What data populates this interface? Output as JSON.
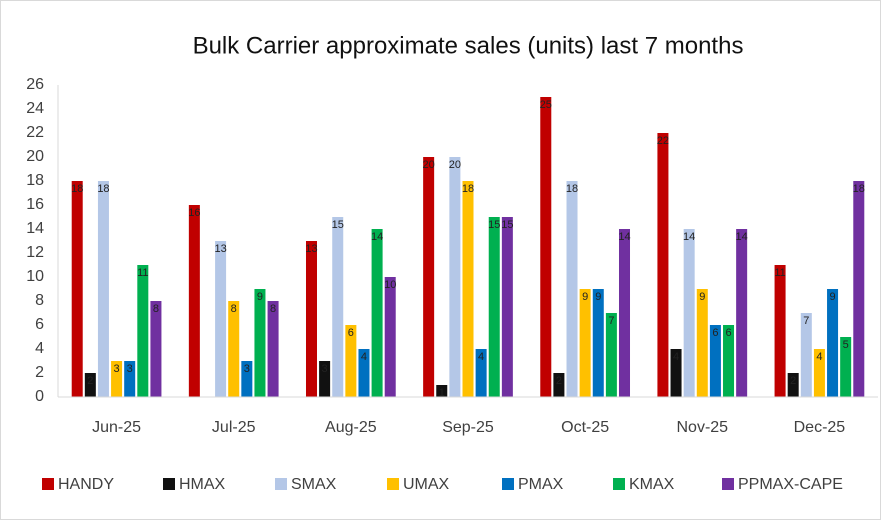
{
  "chart_data": {
    "type": "bar",
    "title": "Bulk Carrier approximate sales (units) last 7 months",
    "categories": [
      "Jun-25",
      "Jul-25",
      "Aug-25",
      "Sep-25",
      "Oct-25",
      "Nov-25",
      "Dec-25"
    ],
    "series": [
      {
        "name": "HANDY",
        "color": "#c00000",
        "values": [
          18,
          16,
          13,
          20,
          25,
          22,
          11
        ]
      },
      {
        "name": "HMAX",
        "color": "#111111",
        "values": [
          2,
          null,
          3,
          1,
          2,
          4,
          2
        ]
      },
      {
        "name": "SMAX",
        "color": "#b4c7e7",
        "values": [
          18,
          13,
          15,
          20,
          18,
          14,
          7
        ]
      },
      {
        "name": "UMAX",
        "color": "#ffc000",
        "values": [
          3,
          8,
          6,
          18,
          9,
          9,
          4
        ]
      },
      {
        "name": "PMAX",
        "color": "#0070c0",
        "values": [
          3,
          3,
          4,
          4,
          9,
          6,
          9
        ]
      },
      {
        "name": "KMAX",
        "color": "#00b050",
        "values": [
          11,
          9,
          14,
          15,
          7,
          6,
          5
        ]
      },
      {
        "name": "PPMAX-CAPE",
        "color": "#7030a0",
        "values": [
          8,
          8,
          10,
          15,
          14,
          14,
          18
        ]
      }
    ],
    "ylim": [
      0,
      26
    ],
    "yticks": [
      0,
      2,
      4,
      6,
      8,
      10,
      12,
      14,
      16,
      18,
      20,
      22,
      24,
      26
    ],
    "grid": false,
    "legend": "bottom"
  }
}
